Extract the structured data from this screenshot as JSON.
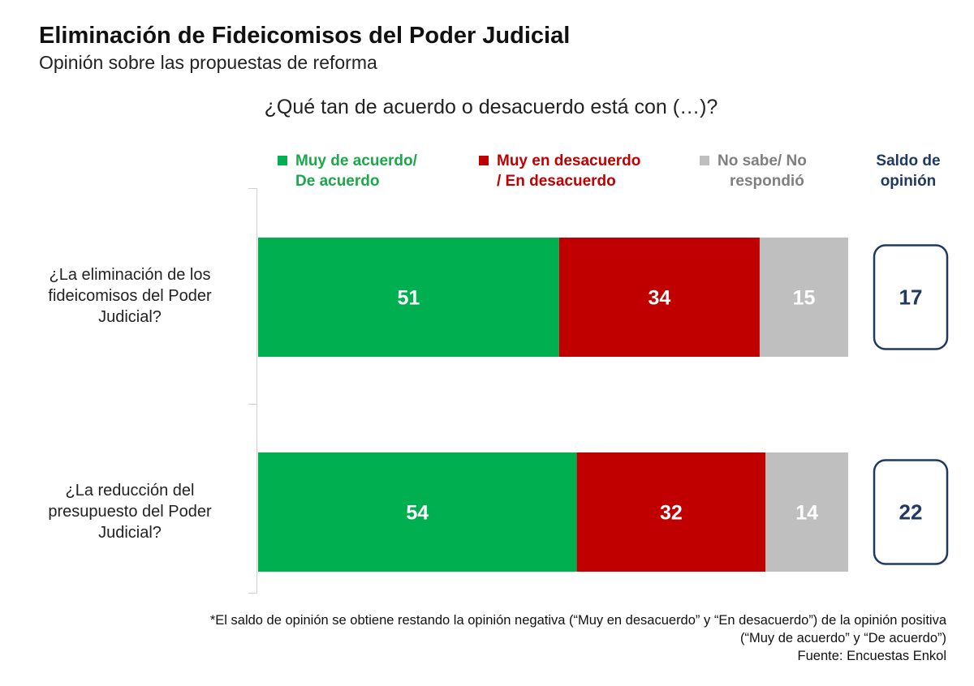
{
  "title": "Eliminación de Fideicomisos del Poder Judicial",
  "subtitle": "Opinión sobre las propuestas de reforma",
  "question": "¿Qué tan de acuerdo o desacuerdo está con (…)?",
  "legend": {
    "agree_line1": "Muy de acuerdo/",
    "agree_line2": "De acuerdo",
    "disagree_line1": "Muy en desacuerdo",
    "disagree_line2": "/ En desacuerdo",
    "dontknow_line1": "No sabe/ No",
    "dontknow_line2": "respondió",
    "balance_line1": "Saldo de",
    "balance_line2": "opinión"
  },
  "colors": {
    "agree": "#00b050",
    "disagree": "#c00000",
    "dontknow": "#bfbfbf",
    "balance_border": "#1f3864",
    "balance_text": "#1f3864"
  },
  "chart_data": {
    "type": "bar",
    "stacked": true,
    "orientation": "horizontal",
    "categories": [
      "¿La eliminación de los fideicomisos del Poder Judicial?",
      "¿La reducción del presupuesto del Poder Judicial?"
    ],
    "category_lines": [
      [
        "¿La eliminación de los",
        "fideicomisos del Poder",
        "Judicial?"
      ],
      [
        "¿La reducción del",
        "presupuesto del Poder",
        "Judicial?"
      ]
    ],
    "series": [
      {
        "name": "Muy de acuerdo/ De acuerdo",
        "values": [
          51,
          54
        ]
      },
      {
        "name": "Muy en desacuerdo / En desacuerdo",
        "values": [
          34,
          32
        ]
      },
      {
        "name": "No sabe/ No respondió",
        "values": [
          15,
          14
        ]
      }
    ],
    "balance": {
      "name": "Saldo de opinión",
      "values": [
        17,
        22
      ]
    },
    "xlim": [
      0,
      100
    ],
    "grid": false,
    "legend_position": "top"
  },
  "footnote_line1": "*El saldo de opinión se obtiene restando la opinión negativa (“Muy en desacuerdo” y “En desacuerdo”) de la opinión positiva",
  "footnote_line2": "(“Muy de acuerdo” y “De acuerdo”)",
  "source": "Fuente: Encuestas Enkol"
}
